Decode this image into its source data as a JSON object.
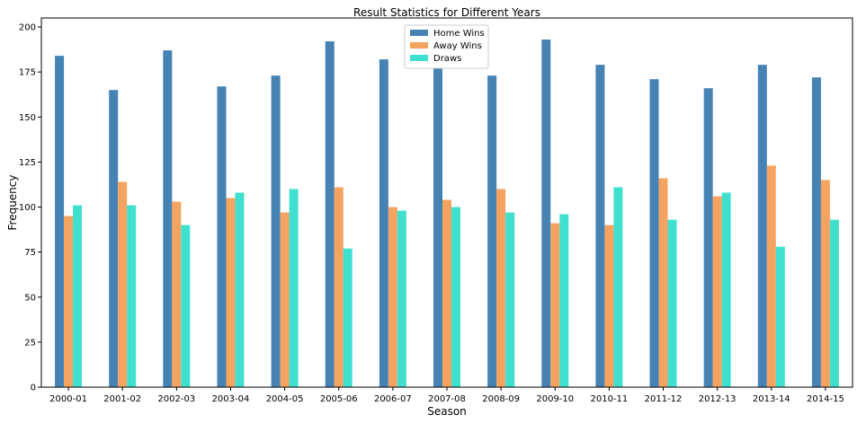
{
  "chart_data": {
    "type": "bar",
    "title": "Result Statistics for Different Years",
    "xlabel": "Season",
    "ylabel": "Frequency",
    "ylim": [
      0,
      205
    ],
    "yticks": [
      0,
      25,
      50,
      75,
      100,
      125,
      150,
      175,
      200
    ],
    "categories": [
      "2000-01",
      "2001-02",
      "2002-03",
      "2003-04",
      "2004-05",
      "2005-06",
      "2006-07",
      "2007-08",
      "2008-09",
      "2009-10",
      "2010-11",
      "2011-12",
      "2012-13",
      "2013-14",
      "2014-15"
    ],
    "series": [
      {
        "name": "Home Wins",
        "color": "#4682b4",
        "values": [
          184,
          165,
          187,
          167,
          173,
          192,
          182,
          177,
          173,
          193,
          179,
          171,
          166,
          179,
          172
        ]
      },
      {
        "name": "Away Wins",
        "color": "#f4a460",
        "values": [
          95,
          114,
          103,
          105,
          97,
          111,
          100,
          104,
          110,
          91,
          90,
          116,
          106,
          123,
          115
        ]
      },
      {
        "name": "Draws",
        "color": "#40e0d0",
        "values": [
          101,
          101,
          90,
          108,
          110,
          77,
          98,
          100,
          97,
          96,
          111,
          93,
          108,
          78,
          93
        ]
      }
    ],
    "legend_position": "top-center",
    "grid": false
  }
}
